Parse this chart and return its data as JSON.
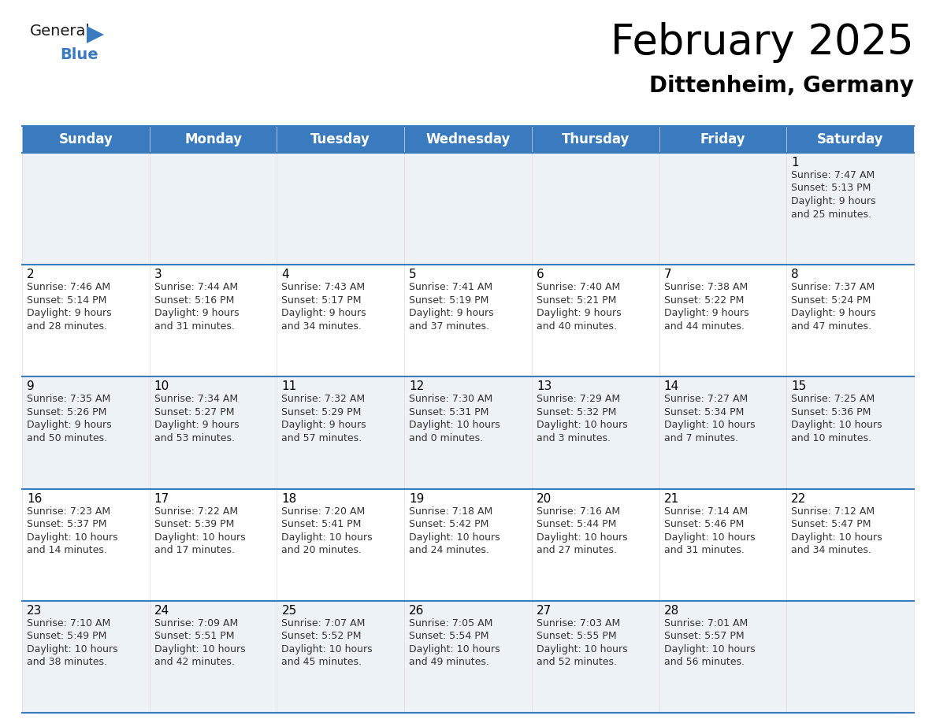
{
  "title": "February 2025",
  "subtitle": "Dittenheim, Germany",
  "header_color": "#3a7abf",
  "header_text_color": "#ffffff",
  "border_color": "#3a7abf",
  "days_of_week": [
    "Sunday",
    "Monday",
    "Tuesday",
    "Wednesday",
    "Thursday",
    "Friday",
    "Saturday"
  ],
  "title_fontsize": 38,
  "subtitle_fontsize": 20,
  "day_header_fontsize": 12,
  "day_num_fontsize": 11,
  "info_fontsize": 9,
  "calendar": [
    [
      {
        "day": null,
        "sunrise": null,
        "sunset": null,
        "daylight": null
      },
      {
        "day": null,
        "sunrise": null,
        "sunset": null,
        "daylight": null
      },
      {
        "day": null,
        "sunrise": null,
        "sunset": null,
        "daylight": null
      },
      {
        "day": null,
        "sunrise": null,
        "sunset": null,
        "daylight": null
      },
      {
        "day": null,
        "sunrise": null,
        "sunset": null,
        "daylight": null
      },
      {
        "day": null,
        "sunrise": null,
        "sunset": null,
        "daylight": null
      },
      {
        "day": 1,
        "sunrise": "7:47 AM",
        "sunset": "5:13 PM",
        "daylight": "9 hours\nand 25 minutes."
      }
    ],
    [
      {
        "day": 2,
        "sunrise": "7:46 AM",
        "sunset": "5:14 PM",
        "daylight": "9 hours\nand 28 minutes."
      },
      {
        "day": 3,
        "sunrise": "7:44 AM",
        "sunset": "5:16 PM",
        "daylight": "9 hours\nand 31 minutes."
      },
      {
        "day": 4,
        "sunrise": "7:43 AM",
        "sunset": "5:17 PM",
        "daylight": "9 hours\nand 34 minutes."
      },
      {
        "day": 5,
        "sunrise": "7:41 AM",
        "sunset": "5:19 PM",
        "daylight": "9 hours\nand 37 minutes."
      },
      {
        "day": 6,
        "sunrise": "7:40 AM",
        "sunset": "5:21 PM",
        "daylight": "9 hours\nand 40 minutes."
      },
      {
        "day": 7,
        "sunrise": "7:38 AM",
        "sunset": "5:22 PM",
        "daylight": "9 hours\nand 44 minutes."
      },
      {
        "day": 8,
        "sunrise": "7:37 AM",
        "sunset": "5:24 PM",
        "daylight": "9 hours\nand 47 minutes."
      }
    ],
    [
      {
        "day": 9,
        "sunrise": "7:35 AM",
        "sunset": "5:26 PM",
        "daylight": "9 hours\nand 50 minutes."
      },
      {
        "day": 10,
        "sunrise": "7:34 AM",
        "sunset": "5:27 PM",
        "daylight": "9 hours\nand 53 minutes."
      },
      {
        "day": 11,
        "sunrise": "7:32 AM",
        "sunset": "5:29 PM",
        "daylight": "9 hours\nand 57 minutes."
      },
      {
        "day": 12,
        "sunrise": "7:30 AM",
        "sunset": "5:31 PM",
        "daylight": "10 hours\nand 0 minutes."
      },
      {
        "day": 13,
        "sunrise": "7:29 AM",
        "sunset": "5:32 PM",
        "daylight": "10 hours\nand 3 minutes."
      },
      {
        "day": 14,
        "sunrise": "7:27 AM",
        "sunset": "5:34 PM",
        "daylight": "10 hours\nand 7 minutes."
      },
      {
        "day": 15,
        "sunrise": "7:25 AM",
        "sunset": "5:36 PM",
        "daylight": "10 hours\nand 10 minutes."
      }
    ],
    [
      {
        "day": 16,
        "sunrise": "7:23 AM",
        "sunset": "5:37 PM",
        "daylight": "10 hours\nand 14 minutes."
      },
      {
        "day": 17,
        "sunrise": "7:22 AM",
        "sunset": "5:39 PM",
        "daylight": "10 hours\nand 17 minutes."
      },
      {
        "day": 18,
        "sunrise": "7:20 AM",
        "sunset": "5:41 PM",
        "daylight": "10 hours\nand 20 minutes."
      },
      {
        "day": 19,
        "sunrise": "7:18 AM",
        "sunset": "5:42 PM",
        "daylight": "10 hours\nand 24 minutes."
      },
      {
        "day": 20,
        "sunrise": "7:16 AM",
        "sunset": "5:44 PM",
        "daylight": "10 hours\nand 27 minutes."
      },
      {
        "day": 21,
        "sunrise": "7:14 AM",
        "sunset": "5:46 PM",
        "daylight": "10 hours\nand 31 minutes."
      },
      {
        "day": 22,
        "sunrise": "7:12 AM",
        "sunset": "5:47 PM",
        "daylight": "10 hours\nand 34 minutes."
      }
    ],
    [
      {
        "day": 23,
        "sunrise": "7:10 AM",
        "sunset": "5:49 PM",
        "daylight": "10 hours\nand 38 minutes."
      },
      {
        "day": 24,
        "sunrise": "7:09 AM",
        "sunset": "5:51 PM",
        "daylight": "10 hours\nand 42 minutes."
      },
      {
        "day": 25,
        "sunrise": "7:07 AM",
        "sunset": "5:52 PM",
        "daylight": "10 hours\nand 45 minutes."
      },
      {
        "day": 26,
        "sunrise": "7:05 AM",
        "sunset": "5:54 PM",
        "daylight": "10 hours\nand 49 minutes."
      },
      {
        "day": 27,
        "sunrise": "7:03 AM",
        "sunset": "5:55 PM",
        "daylight": "10 hours\nand 52 minutes."
      },
      {
        "day": 28,
        "sunrise": "7:01 AM",
        "sunset": "5:57 PM",
        "daylight": "10 hours\nand 56 minutes."
      },
      {
        "day": null,
        "sunrise": null,
        "sunset": null,
        "daylight": null
      }
    ]
  ]
}
